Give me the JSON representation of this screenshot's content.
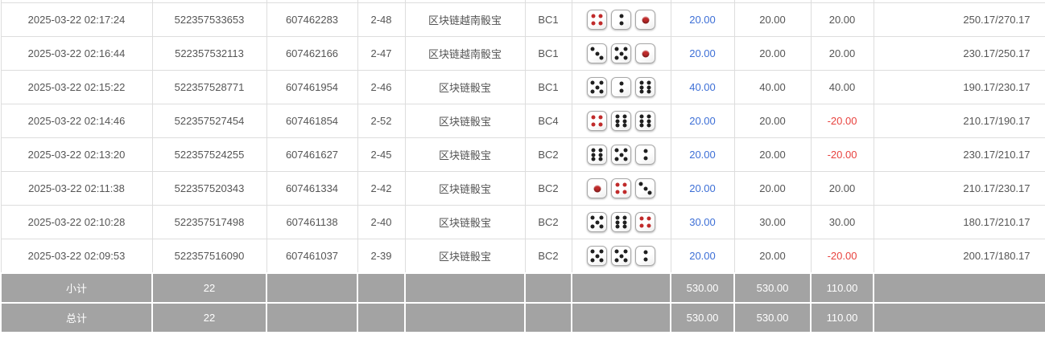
{
  "colors": {
    "bet_amount_link": "#3d6fd6",
    "negative_value": "#e8423e",
    "row_border": "#dddddd",
    "footer_background": "#a3a3a3",
    "footer_text": "#ffffff",
    "body_text": "#555555",
    "dice_red_pip": "#c02a2a",
    "dice_black_pip": "#1f1f1f"
  },
  "table": {
    "rows": [
      {
        "time": "2025-03-22 02:17:24",
        "bet_id": "522357533653",
        "round_id": "607462283",
        "period": "2-48",
        "game": "区块链越南骰宝",
        "bet_type": "BC1",
        "dice": [
          4,
          2,
          1
        ],
        "bet_amount": "20.00",
        "valid_amount": "20.00",
        "win_loss": "20.00",
        "balance": "250.17/270.17"
      },
      {
        "time": "2025-03-22 02:16:44",
        "bet_id": "522357532113",
        "round_id": "607462166",
        "period": "2-47",
        "game": "区块链越南骰宝",
        "bet_type": "BC1",
        "dice": [
          3,
          5,
          1
        ],
        "bet_amount": "20.00",
        "valid_amount": "20.00",
        "win_loss": "20.00",
        "balance": "230.17/250.17"
      },
      {
        "time": "2025-03-22 02:15:22",
        "bet_id": "522357528771",
        "round_id": "607461954",
        "period": "2-46",
        "game": "区块链骰宝",
        "bet_type": "BC1",
        "dice": [
          5,
          2,
          6
        ],
        "bet_amount": "40.00",
        "valid_amount": "40.00",
        "win_loss": "40.00",
        "balance": "190.17/230.17"
      },
      {
        "time": "2025-03-22 02:14:46",
        "bet_id": "522357527454",
        "round_id": "607461854",
        "period": "2-52",
        "game": "区块链骰宝",
        "bet_type": "BC4",
        "dice": [
          4,
          6,
          6
        ],
        "bet_amount": "20.00",
        "valid_amount": "20.00",
        "win_loss": "-20.00",
        "balance": "210.17/190.17"
      },
      {
        "time": "2025-03-22 02:13:20",
        "bet_id": "522357524255",
        "round_id": "607461627",
        "period": "2-45",
        "game": "区块链骰宝",
        "bet_type": "BC2",
        "dice": [
          6,
          5,
          2
        ],
        "bet_amount": "20.00",
        "valid_amount": "20.00",
        "win_loss": "-20.00",
        "balance": "230.17/210.17"
      },
      {
        "time": "2025-03-22 02:11:38",
        "bet_id": "522357520343",
        "round_id": "607461334",
        "period": "2-42",
        "game": "区块链骰宝",
        "bet_type": "BC2",
        "dice": [
          1,
          4,
          3
        ],
        "bet_amount": "20.00",
        "valid_amount": "20.00",
        "win_loss": "20.00",
        "balance": "210.17/230.17"
      },
      {
        "time": "2025-03-22 02:10:28",
        "bet_id": "522357517498",
        "round_id": "607461138",
        "period": "2-40",
        "game": "区块链骰宝",
        "bet_type": "BC2",
        "dice": [
          5,
          6,
          4
        ],
        "bet_amount": "30.00",
        "valid_amount": "30.00",
        "win_loss": "30.00",
        "balance": "180.17/210.17"
      },
      {
        "time": "2025-03-22 02:09:53",
        "bet_id": "522357516090",
        "round_id": "607461037",
        "period": "2-39",
        "game": "区块链骰宝",
        "bet_type": "BC2",
        "dice": [
          5,
          5,
          2
        ],
        "bet_amount": "20.00",
        "valid_amount": "20.00",
        "win_loss": "-20.00",
        "balance": "200.17/180.17"
      }
    ],
    "footer_rows": [
      {
        "label": "小计",
        "count": "22",
        "bet_amount_total": "530.00",
        "valid_amount_total": "530.00",
        "win_loss_total": "110.00"
      },
      {
        "label": "总计",
        "count": "22",
        "bet_amount_total": "530.00",
        "valid_amount_total": "530.00",
        "win_loss_total": "110.00"
      }
    ]
  }
}
